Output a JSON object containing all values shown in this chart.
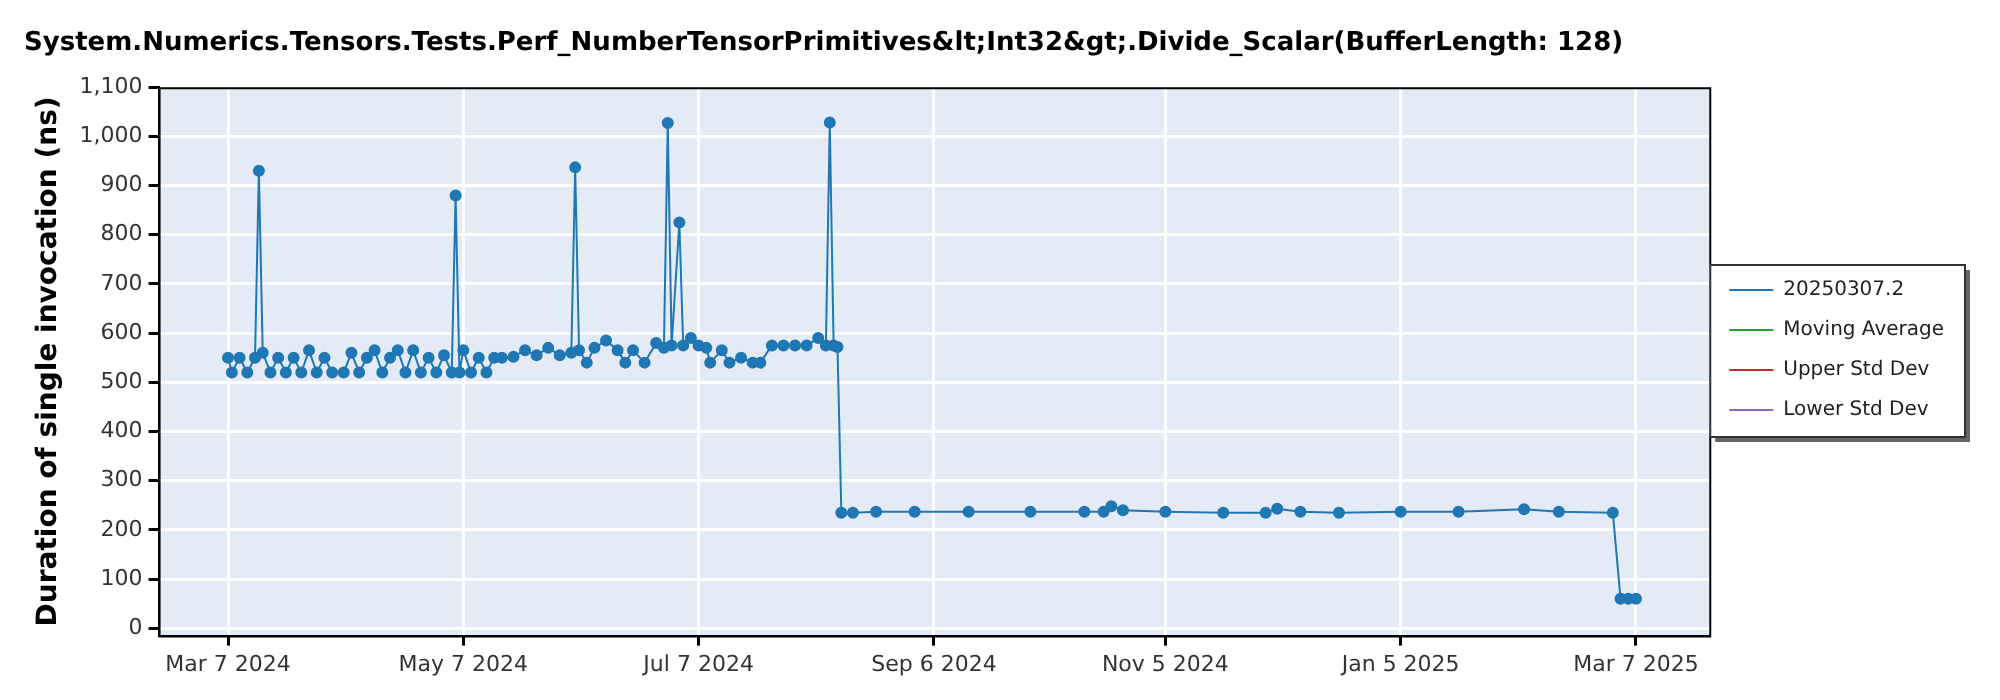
{
  "chart_data": {
    "type": "line",
    "title": "System.Numerics.Tensors.Tests.Perf_NumberTensorPrimitives&lt;Int32&gt;.Divide_Scalar(BufferLength: 128)",
    "ylabel": "Duration of single invocation (ns)",
    "xlim": [
      "2024-02-18",
      "2025-03-26"
    ],
    "xticks": [
      {
        "value": "2024-03-07",
        "label": "Mar 7 2024"
      },
      {
        "value": "2024-05-07",
        "label": "May 7 2024"
      },
      {
        "value": "2024-07-07",
        "label": "Jul 7 2024"
      },
      {
        "value": "2024-09-06",
        "label": "Sep 6 2024"
      },
      {
        "value": "2024-11-05",
        "label": "Nov 5 2024"
      },
      {
        "value": "2025-01-05",
        "label": "Jan 5 2025"
      },
      {
        "value": "2025-03-07",
        "label": "Mar 7 2025"
      }
    ],
    "ylim": [
      -15,
      1100
    ],
    "yticks": [
      0,
      100,
      200,
      300,
      400,
      500,
      600,
      700,
      800,
      900,
      {
        "value": 1000,
        "label": "1,000"
      },
      {
        "value": 1100,
        "label": "1,100"
      }
    ],
    "grid": true,
    "legend": "right",
    "marker": "circle",
    "line_style": "solid",
    "series": [
      {
        "name": "20250307.2",
        "color": "#1f77b4",
        "x": [
          "2024-03-07",
          "2024-03-08",
          "2024-03-10",
          "2024-03-12",
          "2024-03-14",
          "2024-03-15",
          "2024-03-16",
          "2024-03-18",
          "2024-03-20",
          "2024-03-22",
          "2024-03-24",
          "2024-03-26",
          "2024-03-28",
          "2024-03-30",
          "2024-04-01",
          "2024-04-03",
          "2024-04-06",
          "2024-04-08",
          "2024-04-10",
          "2024-04-12",
          "2024-04-14",
          "2024-04-16",
          "2024-04-18",
          "2024-04-20",
          "2024-04-22",
          "2024-04-24",
          "2024-04-26",
          "2024-04-28",
          "2024-04-30",
          "2024-05-02",
          "2024-05-04",
          "2024-05-05",
          "2024-05-06",
          "2024-05-07",
          "2024-05-09",
          "2024-05-11",
          "2024-05-13",
          "2024-05-15",
          "2024-05-17",
          "2024-05-20",
          "2024-05-23",
          "2024-05-26",
          "2024-05-29",
          "2024-06-01",
          "2024-06-04",
          "2024-06-05",
          "2024-06-06",
          "2024-06-08",
          "2024-06-10",
          "2024-06-13",
          "2024-06-16",
          "2024-06-18",
          "2024-06-20",
          "2024-06-23",
          "2024-06-26",
          "2024-06-28",
          "2024-06-29",
          "2024-06-30",
          "2024-07-02",
          "2024-07-03",
          "2024-07-05",
          "2024-07-07",
          "2024-07-09",
          "2024-07-10",
          "2024-07-13",
          "2024-07-15",
          "2024-07-18",
          "2024-07-21",
          "2024-07-23",
          "2024-07-26",
          "2024-07-29",
          "2024-08-01",
          "2024-08-04",
          "2024-08-07",
          "2024-08-09",
          "2024-08-10",
          "2024-08-11",
          "2024-08-12",
          "2024-08-13",
          "2024-08-16",
          "2024-08-22",
          "2024-09-01",
          "2024-09-15",
          "2024-10-01",
          "2024-10-15",
          "2024-10-20",
          "2024-10-22",
          "2024-10-25",
          "2024-11-05",
          "2024-11-20",
          "2024-12-01",
          "2024-12-04",
          "2024-12-10",
          "2024-12-20",
          "2025-01-05",
          "2025-01-20",
          "2025-02-06",
          "2025-02-15",
          "2025-03-01",
          "2025-03-03",
          "2025-03-05",
          "2025-03-07"
        ],
        "values": [
          550,
          520,
          550,
          520,
          550,
          930,
          560,
          520,
          550,
          520,
          550,
          520,
          565,
          520,
          550,
          520,
          520,
          560,
          520,
          550,
          565,
          520,
          550,
          565,
          520,
          565,
          520,
          550,
          520,
          555,
          520,
          880,
          520,
          565,
          520,
          550,
          520,
          550,
          550,
          552,
          565,
          555,
          570,
          555,
          560,
          937,
          565,
          540,
          570,
          585,
          565,
          540,
          565,
          540,
          580,
          570,
          1027,
          575,
          825,
          575,
          590,
          575,
          570,
          540,
          565,
          540,
          550,
          540,
          540,
          575,
          575,
          575,
          575,
          590,
          575,
          1028,
          575,
          572,
          235,
          235,
          237,
          237,
          237,
          237,
          237,
          237,
          248,
          240,
          237,
          235,
          235,
          243,
          237,
          235,
          237,
          237,
          242,
          237,
          235,
          60,
          60,
          60
        ]
      },
      {
        "name": "Moving Average",
        "color": "#2ca02c"
      },
      {
        "name": "Upper Std Dev",
        "color": "#d62728"
      },
      {
        "name": "Lower Std Dev",
        "color": "#9467bd"
      }
    ]
  }
}
